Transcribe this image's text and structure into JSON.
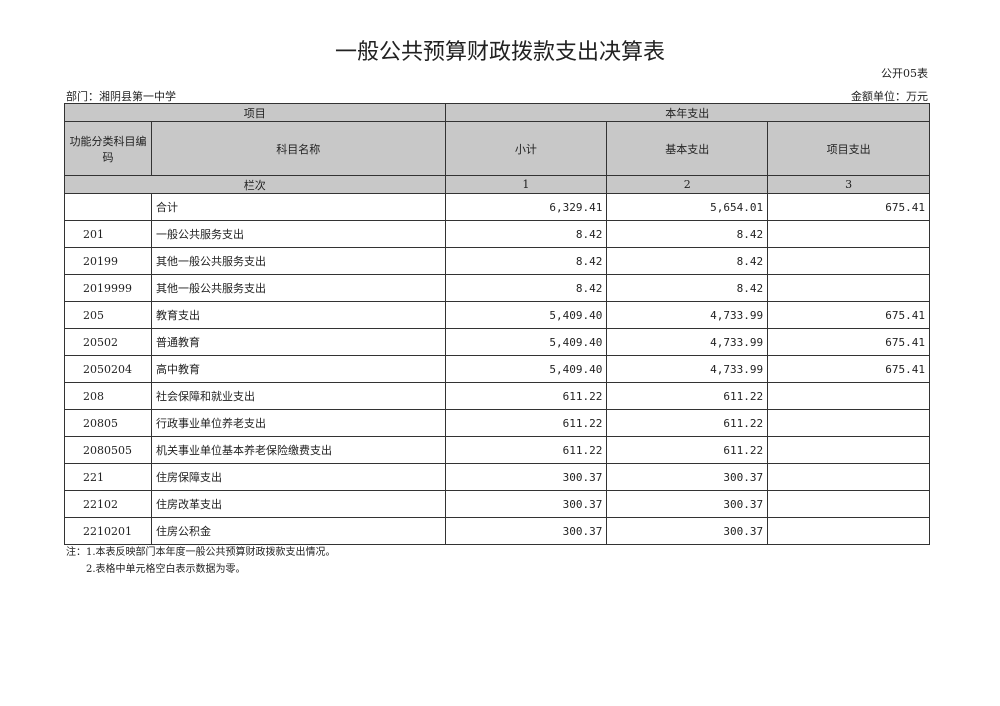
{
  "title": "一般公共预算财政拨款支出决算表",
  "form_no": "公开05表",
  "department": "部门：湘阴县第一中学",
  "unit": "金额单位：万元",
  "header": {
    "project": "项目",
    "current_year": "本年支出",
    "code": "功能分类科目编码",
    "name": "科目名称",
    "subtotal": "小计",
    "basic": "基本支出",
    "project_exp": "项目支出",
    "column_order": "栏次",
    "col1": "1",
    "col2": "2",
    "col3": "3"
  },
  "rows": [
    {
      "code": "",
      "name": "合计",
      "subtotal": "6,329.41",
      "basic": "5,654.01",
      "project": "675.41"
    },
    {
      "code": "201",
      "name": "一般公共服务支出",
      "subtotal": "8.42",
      "basic": "8.42",
      "project": ""
    },
    {
      "code": "20199",
      "name": "其他一般公共服务支出",
      "subtotal": "8.42",
      "basic": "8.42",
      "project": ""
    },
    {
      "code": "2019999",
      "name": "其他一般公共服务支出",
      "subtotal": "8.42",
      "basic": "8.42",
      "project": ""
    },
    {
      "code": "205",
      "name": "教育支出",
      "subtotal": "5,409.40",
      "basic": "4,733.99",
      "project": "675.41"
    },
    {
      "code": "20502",
      "name": "普通教育",
      "subtotal": "5,409.40",
      "basic": "4,733.99",
      "project": "675.41"
    },
    {
      "code": "2050204",
      "name": "高中教育",
      "subtotal": "5,409.40",
      "basic": "4,733.99",
      "project": "675.41"
    },
    {
      "code": "208",
      "name": "社会保障和就业支出",
      "subtotal": "611.22",
      "basic": "611.22",
      "project": ""
    },
    {
      "code": "20805",
      "name": "行政事业单位养老支出",
      "subtotal": "611.22",
      "basic": "611.22",
      "project": ""
    },
    {
      "code": "2080505",
      "name": "机关事业单位基本养老保险缴费支出",
      "subtotal": "611.22",
      "basic": "611.22",
      "project": ""
    },
    {
      "code": "221",
      "name": "住房保障支出",
      "subtotal": "300.37",
      "basic": "300.37",
      "project": ""
    },
    {
      "code": "22102",
      "name": "住房改革支出",
      "subtotal": "300.37",
      "basic": "300.37",
      "project": ""
    },
    {
      "code": "2210201",
      "name": "住房公积金",
      "subtotal": "300.37",
      "basic": "300.37",
      "project": ""
    }
  ],
  "notes": [
    "注：1.本表反映部门本年度一般公共预算财政拨款支出情况。",
    "　　2.表格中单元格空白表示数据为零。"
  ]
}
